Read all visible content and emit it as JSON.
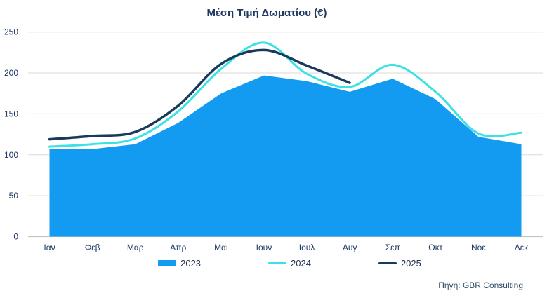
{
  "chart_data": {
    "type": "area",
    "title": "Μέση Τιμή Δωματίου (€)",
    "categories": [
      "Ιαν",
      "Φεβ",
      "Μαρ",
      "Απρ",
      "Μαι",
      "Ιουν",
      "Ιουλ",
      "Αυγ",
      "Σεπ",
      "Οκτ",
      "Νοε",
      "Δεκ"
    ],
    "y_ticks": [
      0,
      50,
      100,
      150,
      200,
      250
    ],
    "ylim": [
      0,
      250
    ],
    "grid": true,
    "legend_position": "bottom",
    "series": [
      {
        "name": "2023",
        "type": "area",
        "smooth": false,
        "color": "#129BF0",
        "values": [
          107,
          107,
          113,
          139,
          175,
          197,
          190,
          177,
          193,
          168,
          122,
          113
        ]
      },
      {
        "name": "2024",
        "type": "line",
        "smooth": true,
        "color": "#3DE1E3",
        "values": [
          110,
          113,
          120,
          153,
          205,
          237,
          199,
          183,
          210,
          177,
          126,
          127
        ]
      },
      {
        "name": "2025",
        "type": "line",
        "smooth": true,
        "color": "#1A3A5C",
        "values": [
          119,
          123,
          128,
          160,
          211,
          228,
          209,
          188,
          null,
          null,
          null,
          null
        ]
      }
    ]
  },
  "footer": {
    "source": "Πηγή: GBR Consulting"
  },
  "style": {
    "grid_color": "#DADADA",
    "axis_color": "#C3C3C3",
    "text_color": "#1F3864"
  }
}
